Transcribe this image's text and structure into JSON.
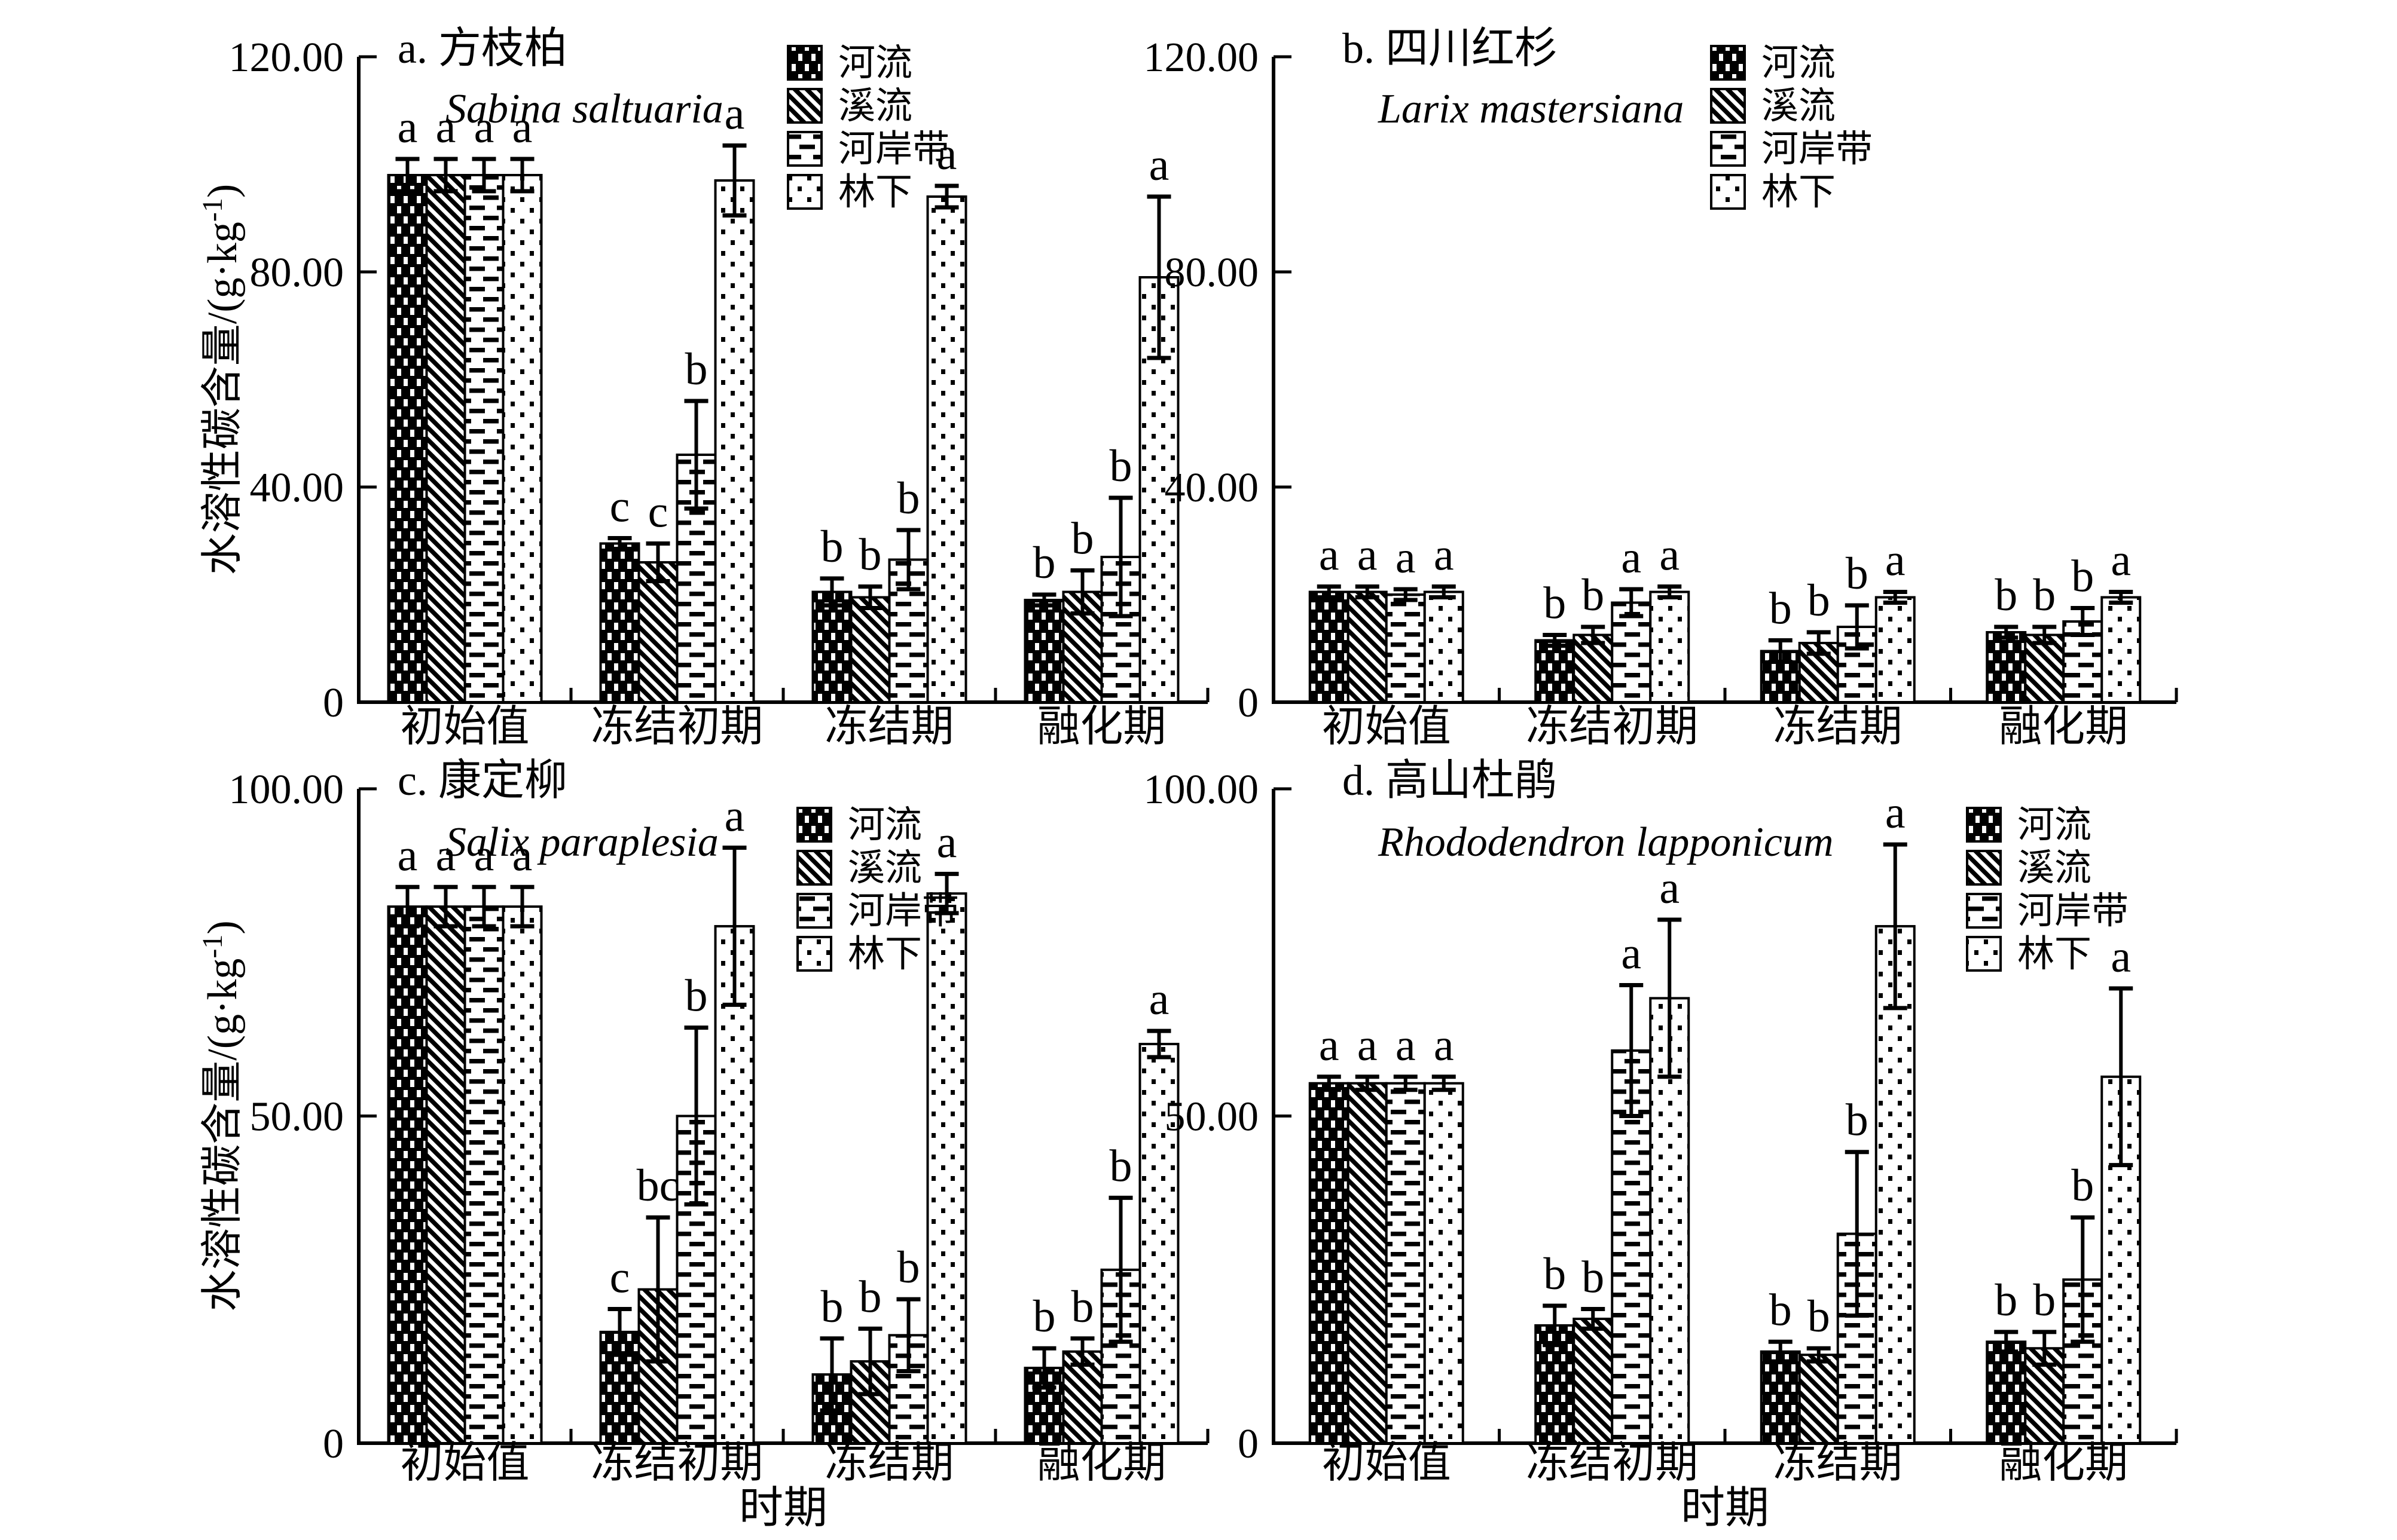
{
  "figure": {
    "background": "#ffffff",
    "ink_color": "#000000",
    "ylabel_main": "水溶性碳含量/(g·kg",
    "ylabel_sup": "-1",
    "ylabel_close": ")",
    "xlabel": "时期",
    "categories": [
      "初始值",
      "冻结初期",
      "冻结期",
      "融化期"
    ],
    "legend": [
      "河流",
      "溪流",
      "河岸带",
      "林下"
    ]
  },
  "chart_data": [
    {
      "id": "a",
      "type": "bar",
      "title": "a. 方枝柏",
      "species": "Sabina saltuaria",
      "ylabel": "水溶性碳含量/(g·kg⁻¹)",
      "xlabel": "",
      "ylim": [
        0,
        120
      ],
      "yticks": [
        {
          "v": 0,
          "label": "0"
        },
        {
          "v": 40,
          "label": "40.00"
        },
        {
          "v": 80,
          "label": "80.00"
        },
        {
          "v": 120,
          "label": "120.00"
        }
      ],
      "categories": [
        "初始值",
        "冻结初期",
        "冻结期",
        "融化期"
      ],
      "series": [
        {
          "name": "河流",
          "pattern": "river",
          "values": [
            98,
            29.5,
            20.5,
            19
          ],
          "errors": [
            3,
            1,
            2.5,
            1
          ],
          "letters": [
            "a",
            "c",
            "b",
            "b"
          ]
        },
        {
          "name": "溪流",
          "pattern": "stream",
          "values": [
            98,
            26,
            19.5,
            20.5
          ],
          "errors": [
            3,
            3.5,
            2,
            4
          ],
          "letters": [
            "a",
            "c",
            "b",
            "b"
          ]
        },
        {
          "name": "河岸带",
          "pattern": "riparian",
          "values": [
            98,
            46,
            26.5,
            27
          ],
          "errors": [
            3,
            10,
            5.5,
            11
          ],
          "letters": [
            "a",
            "b",
            "b",
            "b"
          ]
        },
        {
          "name": "林下",
          "pattern": "forest",
          "values": [
            98,
            97,
            94,
            79
          ],
          "errors": [
            3,
            6.5,
            2,
            15
          ],
          "letters": [
            "a",
            "a",
            "a",
            "a"
          ]
        }
      ]
    },
    {
      "id": "b",
      "type": "bar",
      "title": "b. 四川红杉",
      "species": "Larix mastersiana",
      "ylabel": "",
      "xlabel": "",
      "ylim": [
        0,
        120
      ],
      "yticks": [
        {
          "v": 0,
          "label": "0"
        },
        {
          "v": 40,
          "label": "40.00"
        },
        {
          "v": 80,
          "label": "80.00"
        },
        {
          "v": 120,
          "label": "120.00"
        }
      ],
      "categories": [
        "初始值",
        "冻结初期",
        "冻结期",
        "融化期"
      ],
      "series": [
        {
          "name": "河流",
          "pattern": "river",
          "values": [
            20.5,
            11.5,
            9.5,
            13
          ],
          "errors": [
            1,
            1,
            2,
            1
          ],
          "letters": [
            "a",
            "b",
            "b",
            "b"
          ]
        },
        {
          "name": "溪流",
          "pattern": "stream",
          "values": [
            20.5,
            12.5,
            11,
            12.5
          ],
          "errors": [
            1,
            1.5,
            2,
            1.5
          ],
          "letters": [
            "a",
            "b",
            "b",
            "b"
          ]
        },
        {
          "name": "河岸带",
          "pattern": "riparian",
          "values": [
            20,
            18.5,
            14,
            15
          ],
          "errors": [
            1,
            2.5,
            4,
            2.5
          ],
          "letters": [
            "a",
            "a",
            "b",
            "b"
          ]
        },
        {
          "name": "林下",
          "pattern": "forest",
          "values": [
            20.5,
            20.5,
            19.5,
            19.5
          ],
          "errors": [
            1,
            1,
            1,
            1
          ],
          "letters": [
            "a",
            "a",
            "a",
            "a"
          ]
        }
      ]
    },
    {
      "id": "c",
      "type": "bar",
      "title": "c. 康定柳",
      "species": "Salix paraplesia",
      "ylabel": "水溶性碳含量/(g·kg⁻¹)",
      "xlabel": "时期",
      "ylim": [
        0,
        100
      ],
      "yticks": [
        {
          "v": 0,
          "label": "0"
        },
        {
          "v": 50,
          "label": "50.00"
        },
        {
          "v": 100,
          "label": "100.00"
        }
      ],
      "categories": [
        "初始值",
        "冻结初期",
        "冻结期",
        "融化期"
      ],
      "series": [
        {
          "name": "河流",
          "pattern": "river",
          "values": [
            82,
            17,
            10.5,
            11.5
          ],
          "errors": [
            3,
            3.5,
            5.5,
            3
          ],
          "letters": [
            "a",
            "c",
            "b",
            "b"
          ]
        },
        {
          "name": "溪流",
          "pattern": "stream",
          "values": [
            82,
            23.5,
            12.5,
            14
          ],
          "errors": [
            3,
            11,
            5,
            2
          ],
          "letters": [
            "a",
            "bc",
            "b",
            "b"
          ]
        },
        {
          "name": "河岸带",
          "pattern": "riparian",
          "values": [
            82,
            50,
            16.5,
            26.5
          ],
          "errors": [
            3,
            13.5,
            5.5,
            11
          ],
          "letters": [
            "a",
            "b",
            "b",
            "b"
          ]
        },
        {
          "name": "林下",
          "pattern": "forest",
          "values": [
            82,
            79,
            84,
            61
          ],
          "errors": [
            3,
            12,
            3,
            2
          ],
          "letters": [
            "a",
            "a",
            "a",
            "a"
          ]
        }
      ]
    },
    {
      "id": "d",
      "type": "bar",
      "title": "d. 高山杜鹃",
      "species": "Rhododendron lapponicum",
      "ylabel": "",
      "xlabel": "时期",
      "ylim": [
        0,
        100
      ],
      "yticks": [
        {
          "v": 0,
          "label": "0"
        },
        {
          "v": 50,
          "label": "50.00"
        },
        {
          "v": 100,
          "label": "100.00"
        }
      ],
      "categories": [
        "初始值",
        "冻结初期",
        "冻结期",
        "融化期"
      ],
      "series": [
        {
          "name": "河流",
          "pattern": "river",
          "values": [
            55,
            18,
            14,
            15.5
          ],
          "errors": [
            1,
            3,
            1.5,
            1.5
          ],
          "letters": [
            "a",
            "b",
            "b",
            "b"
          ]
        },
        {
          "name": "溪流",
          "pattern": "stream",
          "values": [
            55,
            19,
            13.5,
            14.5
          ],
          "errors": [
            1,
            1.5,
            1,
            2.5
          ],
          "letters": [
            "a",
            "b",
            "b",
            "b"
          ]
        },
        {
          "name": "河岸带",
          "pattern": "riparian",
          "values": [
            55,
            60,
            32,
            25
          ],
          "errors": [
            1,
            10,
            12.5,
            9.5
          ],
          "letters": [
            "a",
            "a",
            "b",
            "b"
          ]
        },
        {
          "name": "林下",
          "pattern": "forest",
          "values": [
            55,
            68,
            79,
            56
          ],
          "errors": [
            1,
            12,
            12.5,
            13.5
          ],
          "letters": [
            "a",
            "a",
            "a",
            "a"
          ]
        }
      ]
    }
  ]
}
